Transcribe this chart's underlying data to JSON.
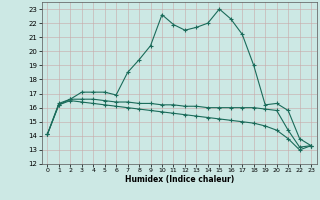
{
  "xlabel": "Humidex (Indice chaleur)",
  "background_color": "#cce8e4",
  "line_color": "#1a6b5a",
  "xlim": [
    -0.5,
    23.5
  ],
  "ylim": [
    12,
    23.5
  ],
  "yticks": [
    12,
    13,
    14,
    15,
    16,
    17,
    18,
    19,
    20,
    21,
    22,
    23
  ],
  "xticks": [
    0,
    1,
    2,
    3,
    4,
    5,
    6,
    7,
    8,
    9,
    10,
    11,
    12,
    13,
    14,
    15,
    16,
    17,
    18,
    19,
    20,
    21,
    22,
    23
  ],
  "line1_x": [
    0,
    1,
    2,
    3,
    4,
    5,
    6,
    7,
    8,
    9,
    10,
    11,
    12,
    13,
    14,
    15,
    16,
    17,
    18,
    19,
    20,
    21,
    22,
    23
  ],
  "line1_y": [
    14.1,
    16.3,
    16.6,
    17.1,
    17.1,
    17.1,
    16.9,
    18.5,
    19.4,
    20.4,
    22.6,
    21.9,
    21.5,
    21.7,
    22.0,
    23.0,
    22.3,
    21.2,
    19.0,
    16.2,
    16.3,
    15.8,
    13.8,
    13.3
  ],
  "line2_x": [
    0,
    1,
    2,
    3,
    4,
    5,
    6,
    7,
    8,
    9,
    10,
    11,
    12,
    13,
    14,
    15,
    16,
    17,
    18,
    19,
    20,
    21,
    22,
    23
  ],
  "line2_y": [
    14.1,
    16.2,
    16.6,
    16.6,
    16.6,
    16.5,
    16.4,
    16.4,
    16.3,
    16.3,
    16.2,
    16.2,
    16.1,
    16.1,
    16.0,
    16.0,
    16.0,
    16.0,
    16.0,
    15.9,
    15.8,
    14.4,
    13.2,
    13.3
  ],
  "line3_x": [
    0,
    1,
    2,
    3,
    4,
    5,
    6,
    7,
    8,
    9,
    10,
    11,
    12,
    13,
    14,
    15,
    16,
    17,
    18,
    19,
    20,
    21,
    22,
    23
  ],
  "line3_y": [
    14.1,
    16.2,
    16.5,
    16.4,
    16.3,
    16.2,
    16.1,
    16.0,
    15.9,
    15.8,
    15.7,
    15.6,
    15.5,
    15.4,
    15.3,
    15.2,
    15.1,
    15.0,
    14.9,
    14.7,
    14.4,
    13.8,
    13.0,
    13.3
  ],
  "marker_style": "+"
}
